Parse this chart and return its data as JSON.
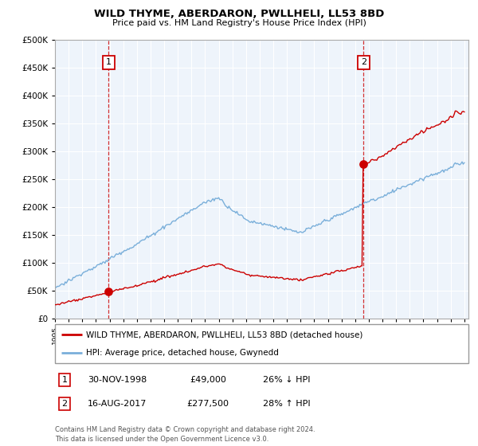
{
  "title": "WILD THYME, ABERDARON, PWLLHELI, LL53 8BD",
  "subtitle": "Price paid vs. HM Land Registry's House Price Index (HPI)",
  "legend_line1": "WILD THYME, ABERDARON, PWLLHELI, LL53 8BD (detached house)",
  "legend_line2": "HPI: Average price, detached house, Gwynedd",
  "annotation1_date": "30-NOV-1998",
  "annotation1_price": "£49,000",
  "annotation1_hpi": "26% ↓ HPI",
  "annotation2_date": "16-AUG-2017",
  "annotation2_price": "£277,500",
  "annotation2_hpi": "28% ↑ HPI",
  "footnote": "Contains HM Land Registry data © Crown copyright and database right 2024.\nThis data is licensed under the Open Government Licence v3.0.",
  "red_color": "#cc0000",
  "blue_color": "#7aafda",
  "ylim": [
    0,
    500000
  ],
  "purchase1_year": 1998.92,
  "purchase1_price": 49000,
  "purchase2_year": 2017.62,
  "purchase2_price": 277500
}
